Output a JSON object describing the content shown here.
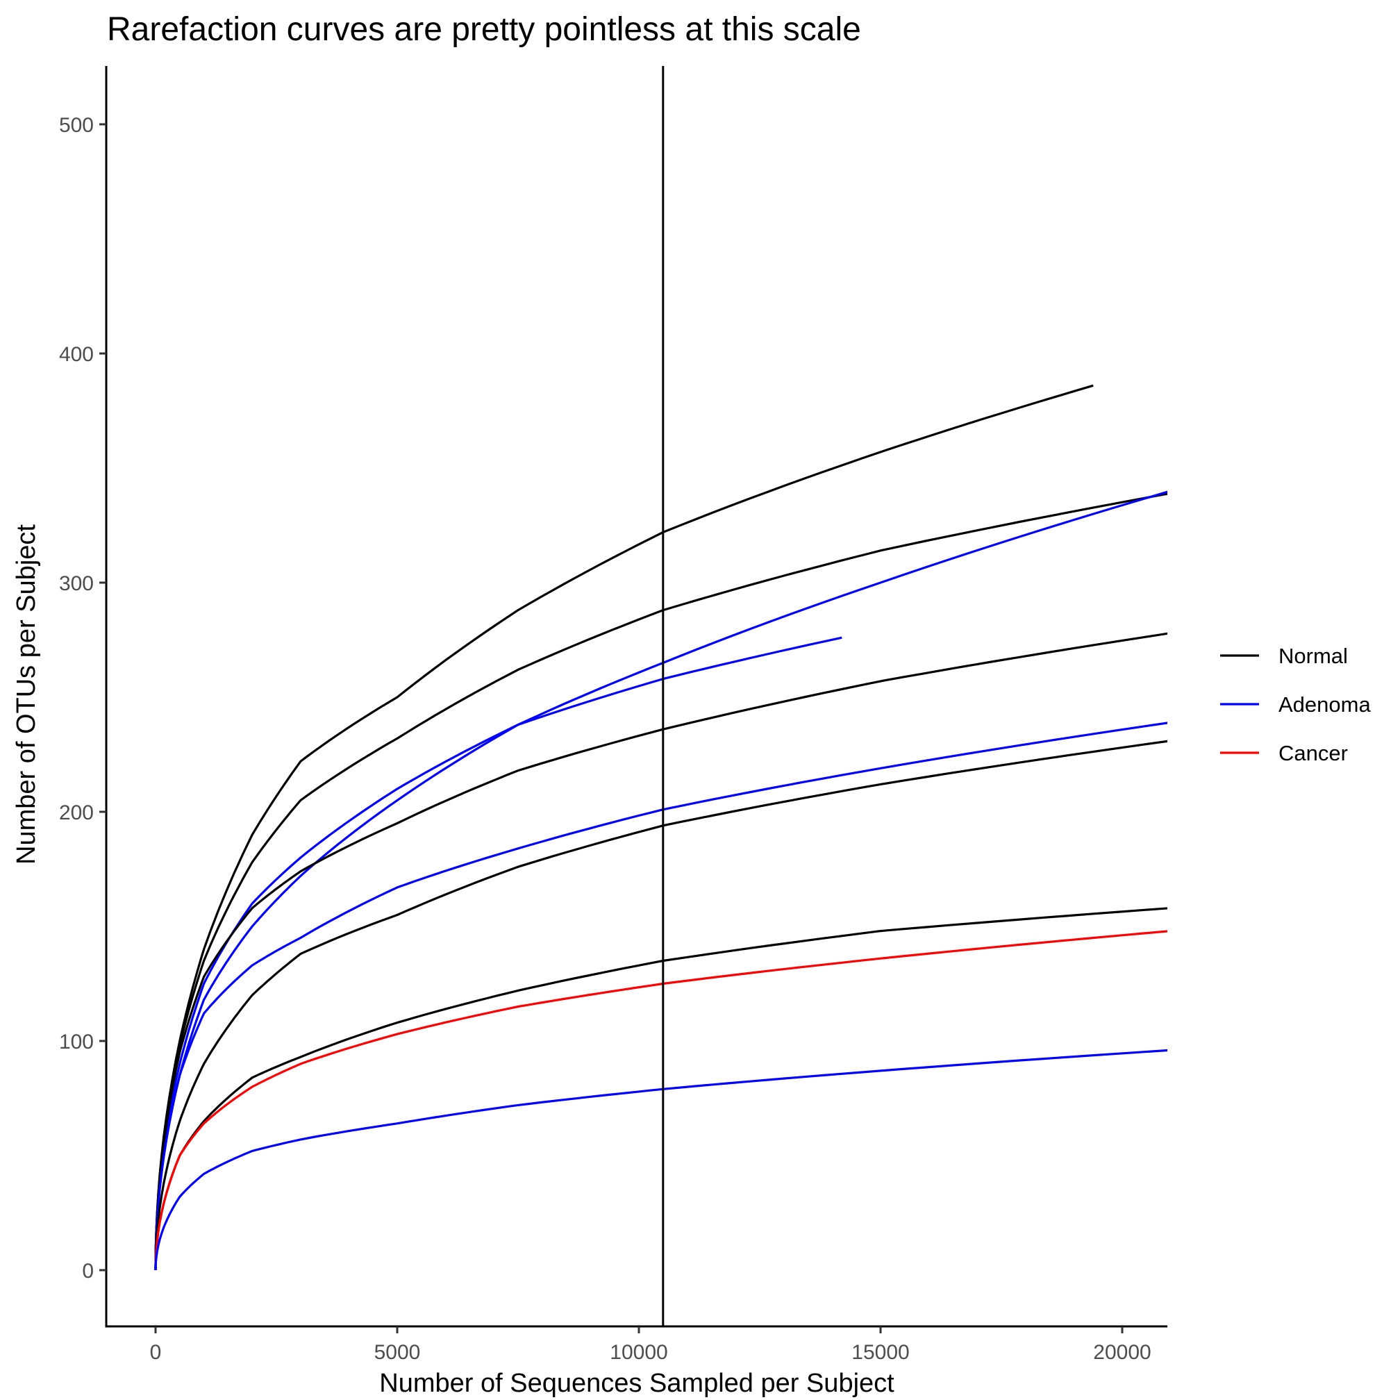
{
  "chart_data": {
    "type": "line",
    "title": "Rarefaction curves are pretty pointless at this scale",
    "xlabel": "Number of Sequences Sampled per Subject",
    "ylabel": "Number of OTUs per Subject",
    "xlim": [
      -1000,
      21000
    ],
    "ylim": [
      -25,
      525
    ],
    "x_ticks": [
      0,
      5000,
      10000,
      15000,
      20000
    ],
    "x_tick_labels": [
      "0",
      "5000",
      "10000",
      "15000",
      "20000"
    ],
    "y_ticks": [
      0,
      100,
      200,
      300,
      400,
      500
    ],
    "y_tick_labels": [
      "0",
      "100",
      "200",
      "300",
      "400",
      "500"
    ],
    "vline": {
      "x": 10500,
      "color": "#000000"
    },
    "grid": false,
    "legend": {
      "position": "right",
      "entries": [
        {
          "label": "Normal",
          "color": "#000000"
        },
        {
          "label": "Adenoma",
          "color": "#0000FF"
        },
        {
          "label": "Cancer",
          "color": "#FF0000"
        }
      ]
    },
    "series": [
      {
        "name": "Normal",
        "group": "Normal",
        "x": [
          0,
          500,
          1000,
          2000,
          3000,
          5000,
          7500,
          10500,
          15000,
          19400
        ],
        "values": [
          0,
          100,
          140,
          190,
          222,
          250,
          288,
          322,
          357,
          386
        ]
      },
      {
        "name": "Normal",
        "group": "Normal",
        "x": [
          0,
          500,
          1000,
          2000,
          3000,
          5000,
          7500,
          10500,
          15000,
          21000
        ],
        "values": [
          0,
          98,
          135,
          178,
          205,
          232,
          262,
          288,
          314,
          339
        ]
      },
      {
        "name": "Adenoma",
        "group": "Adenoma",
        "x": [
          0,
          500,
          1000,
          2000,
          3000,
          5000,
          7500,
          10500,
          15000,
          21000
        ],
        "values": [
          0,
          85,
          118,
          150,
          172,
          205,
          238,
          265,
          300,
          340
        ]
      },
      {
        "name": "Adenoma",
        "group": "Adenoma",
        "x": [
          0,
          500,
          1000,
          2000,
          3000,
          5000,
          7500,
          10500,
          14200
        ],
        "values": [
          0,
          90,
          125,
          160,
          180,
          210,
          238,
          258,
          276
        ]
      },
      {
        "name": "Normal",
        "group": "Normal",
        "x": [
          0,
          500,
          1000,
          2000,
          3000,
          5000,
          7500,
          10500,
          15000,
          21000
        ],
        "values": [
          0,
          95,
          128,
          158,
          174,
          195,
          218,
          236,
          257,
          278
        ]
      },
      {
        "name": "Adenoma",
        "group": "Adenoma",
        "x": [
          0,
          500,
          1000,
          2000,
          3000,
          5000,
          7500,
          10500,
          15000,
          21000
        ],
        "values": [
          0,
          85,
          112,
          133,
          145,
          167,
          184,
          201,
          219,
          239
        ]
      },
      {
        "name": "Normal",
        "group": "Normal",
        "x": [
          0,
          500,
          1000,
          2000,
          3000,
          5000,
          7500,
          10500,
          15000,
          21000
        ],
        "values": [
          0,
          65,
          90,
          120,
          138,
          155,
          176,
          194,
          212,
          231
        ]
      },
      {
        "name": "Normal",
        "group": "Normal",
        "x": [
          0,
          500,
          1000,
          2000,
          3000,
          5000,
          7500,
          10500,
          15000,
          21000
        ],
        "values": [
          0,
          50,
          65,
          84,
          93,
          108,
          122,
          135,
          148,
          158
        ]
      },
      {
        "name": "Cancer",
        "group": "Cancer",
        "x": [
          0,
          500,
          1000,
          2000,
          3000,
          5000,
          7500,
          10500,
          15000,
          21000
        ],
        "values": [
          0,
          50,
          64,
          80,
          90,
          103,
          115,
          125,
          136,
          148
        ]
      },
      {
        "name": "Adenoma",
        "group": "Adenoma",
        "x": [
          0,
          500,
          1000,
          2000,
          3000,
          5000,
          7500,
          10500,
          15000,
          21000
        ],
        "values": [
          0,
          32,
          42,
          52,
          57,
          64,
          72,
          79,
          87,
          96
        ]
      }
    ]
  }
}
